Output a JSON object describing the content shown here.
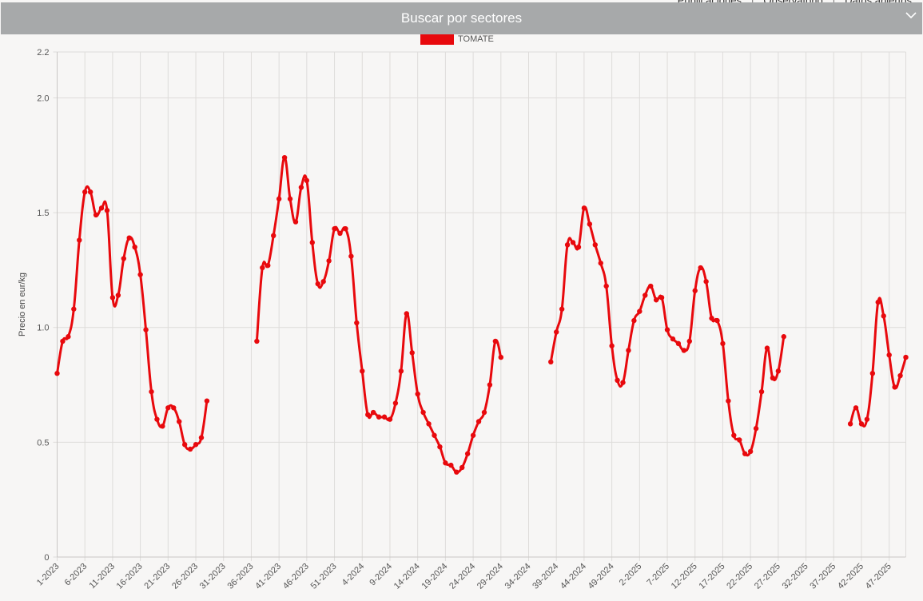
{
  "nav": {
    "links": [
      "Publicaciones",
      "Observatorio",
      "Datos abiertos"
    ]
  },
  "sector_bar": {
    "label": "Buscar por sectores",
    "icon": "chevron-down-icon"
  },
  "colors": {
    "series": "#e8090d",
    "bar": "#a7a9aa",
    "grid": "#dedcda",
    "background": "#f7f6f5"
  },
  "chart_data": {
    "type": "line",
    "ylabel": "Precio en eur/kg",
    "ylim": [
      0,
      2.2
    ],
    "yticks": [
      "0",
      "0.5",
      "1.0",
      "1.5",
      "2.0",
      "2.2"
    ],
    "legend": "top",
    "grid": true,
    "tick_labels": [
      "1-2023",
      "6-2023",
      "11-2023",
      "16-2023",
      "21-2023",
      "26-2023",
      "31-2023",
      "36-2023",
      "41-2023",
      "46-2023",
      "51-2023",
      "4-2024",
      "9-2024",
      "14-2024",
      "19-2024",
      "24-2024",
      "29-2024",
      "34-2024",
      "39-2024",
      "44-2024",
      "49-2024",
      "2-2025",
      "7-2025",
      "12-2025",
      "17-2025",
      "22-2025",
      "27-2025",
      "32-2025",
      "37-2025",
      "42-2025",
      "47-2025"
    ],
    "series": [
      {
        "name": "TOMATE",
        "values": [
          0.8,
          0.94,
          0.96,
          1.08,
          1.38,
          1.59,
          1.59,
          1.49,
          1.52,
          1.51,
          1.13,
          1.14,
          1.3,
          1.39,
          1.35,
          1.23,
          0.99,
          0.72,
          0.6,
          0.57,
          0.65,
          0.65,
          0.59,
          0.49,
          0.47,
          0.49,
          0.52,
          0.68,
          null,
          null,
          null,
          null,
          null,
          null,
          null,
          null,
          0.94,
          1.26,
          1.27,
          1.4,
          1.56,
          1.74,
          1.56,
          1.46,
          1.61,
          1.64,
          1.37,
          1.19,
          1.2,
          1.29,
          1.43,
          1.41,
          1.43,
          1.31,
          1.02,
          0.81,
          0.62,
          0.63,
          0.61,
          0.61,
          0.6,
          0.67,
          0.81,
          1.06,
          0.89,
          0.71,
          0.63,
          0.58,
          0.53,
          0.48,
          0.41,
          0.4,
          0.37,
          0.39,
          0.45,
          0.53,
          0.59,
          0.63,
          0.75,
          0.94,
          0.87,
          null,
          null,
          null,
          null,
          null,
          null,
          null,
          null,
          0.85,
          0.98,
          1.08,
          1.36,
          1.37,
          1.35,
          1.52,
          1.45,
          1.36,
          1.28,
          1.18,
          0.92,
          0.77,
          0.76,
          0.9,
          1.03,
          1.07,
          1.14,
          1.18,
          1.12,
          1.13,
          0.99,
          0.95,
          0.93,
          0.9,
          0.94,
          1.16,
          1.26,
          1.2,
          1.04,
          1.03,
          0.93,
          0.68,
          0.53,
          0.51,
          0.45,
          0.46,
          0.56,
          0.72,
          0.91,
          0.78,
          0.81,
          0.96,
          null,
          null,
          null,
          null,
          null,
          null,
          null,
          null,
          null,
          null,
          null,
          0.58,
          0.65,
          0.58,
          0.6,
          0.8,
          1.11,
          1.05,
          0.88,
          0.74,
          0.79,
          0.87
        ]
      }
    ]
  }
}
